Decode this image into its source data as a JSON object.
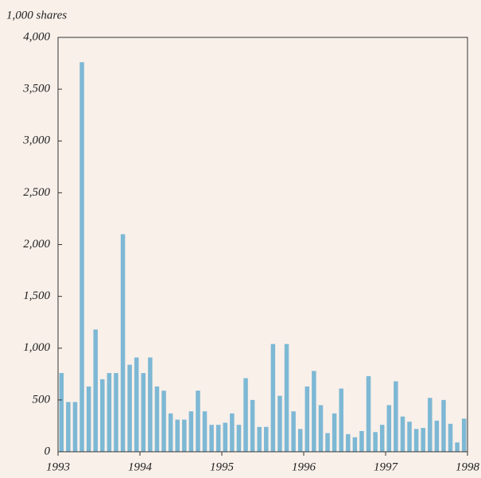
{
  "chart_data": {
    "type": "bar",
    "y_label": "1,000 shares",
    "categories": [
      null,
      null,
      null,
      null,
      null,
      null,
      null,
      null,
      null,
      null,
      null,
      null,
      null,
      null,
      null,
      null,
      null,
      null,
      null,
      null,
      null,
      null,
      null,
      null,
      null,
      null,
      null,
      null,
      null,
      null,
      null,
      null,
      null,
      null,
      null,
      null,
      null,
      null,
      null,
      null,
      null,
      null,
      null,
      null,
      null,
      null,
      null,
      null,
      null,
      null,
      null,
      null,
      null,
      null,
      null,
      null,
      null,
      null,
      null,
      null
    ],
    "values": [
      760,
      480,
      480,
      3760,
      630,
      1180,
      700,
      760,
      760,
      2100,
      840,
      910,
      760,
      910,
      630,
      590,
      370,
      310,
      310,
      390,
      590,
      390,
      260,
      260,
      280,
      370,
      260,
      710,
      500,
      240,
      240,
      1040,
      540,
      1040,
      390,
      220,
      630,
      780,
      450,
      180,
      370,
      610,
      170,
      140,
      200,
      730,
      190,
      260,
      450,
      680,
      340,
      290,
      220,
      230,
      520,
      300,
      500,
      270,
      90,
      320
    ],
    "color": "#7db8d4",
    "ylim": [
      0,
      4000
    ],
    "yticks": [
      0,
      500,
      {
        "value": 1000,
        "label": "1,000"
      },
      {
        "value": 1500,
        "label": "1,500"
      },
      {
        "value": 2000,
        "label": "2,000"
      },
      {
        "value": 2500,
        "label": "2,500"
      },
      {
        "value": 3000,
        "label": "3,000"
      },
      {
        "value": 3500,
        "label": "3,500"
      },
      {
        "value": 4000,
        "label": "4,000"
      }
    ],
    "xlim": [
      1993,
      1998
    ],
    "xticks": [
      1993,
      1994,
      1995,
      1996,
      1997,
      1998
    ],
    "grid": false
  }
}
